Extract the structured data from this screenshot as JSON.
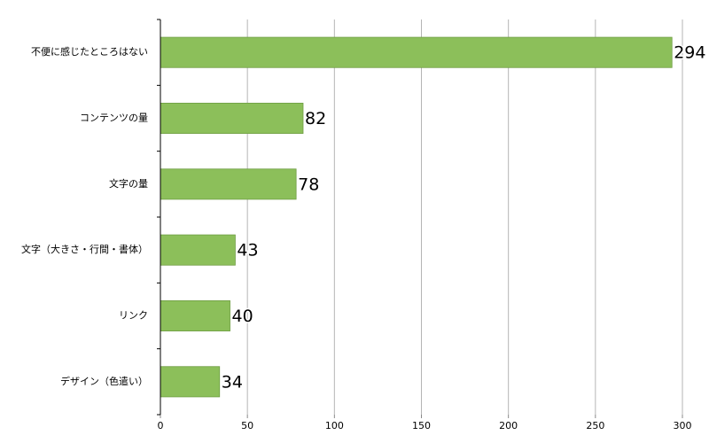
{
  "chart_data": {
    "type": "bar",
    "orientation": "horizontal",
    "categories": [
      "不便に感じたところはない",
      "コンテンツの量",
      "文字の量",
      "文字（大きさ・行間・書体）",
      "リンク",
      "デザイン（色遣い）"
    ],
    "values": [
      294,
      82,
      78,
      43,
      40,
      34
    ],
    "color": "#8cbf5a",
    "xlim": [
      0,
      300
    ],
    "xticks": [
      0,
      50,
      100,
      150,
      200,
      250,
      300
    ],
    "grid": true
  }
}
